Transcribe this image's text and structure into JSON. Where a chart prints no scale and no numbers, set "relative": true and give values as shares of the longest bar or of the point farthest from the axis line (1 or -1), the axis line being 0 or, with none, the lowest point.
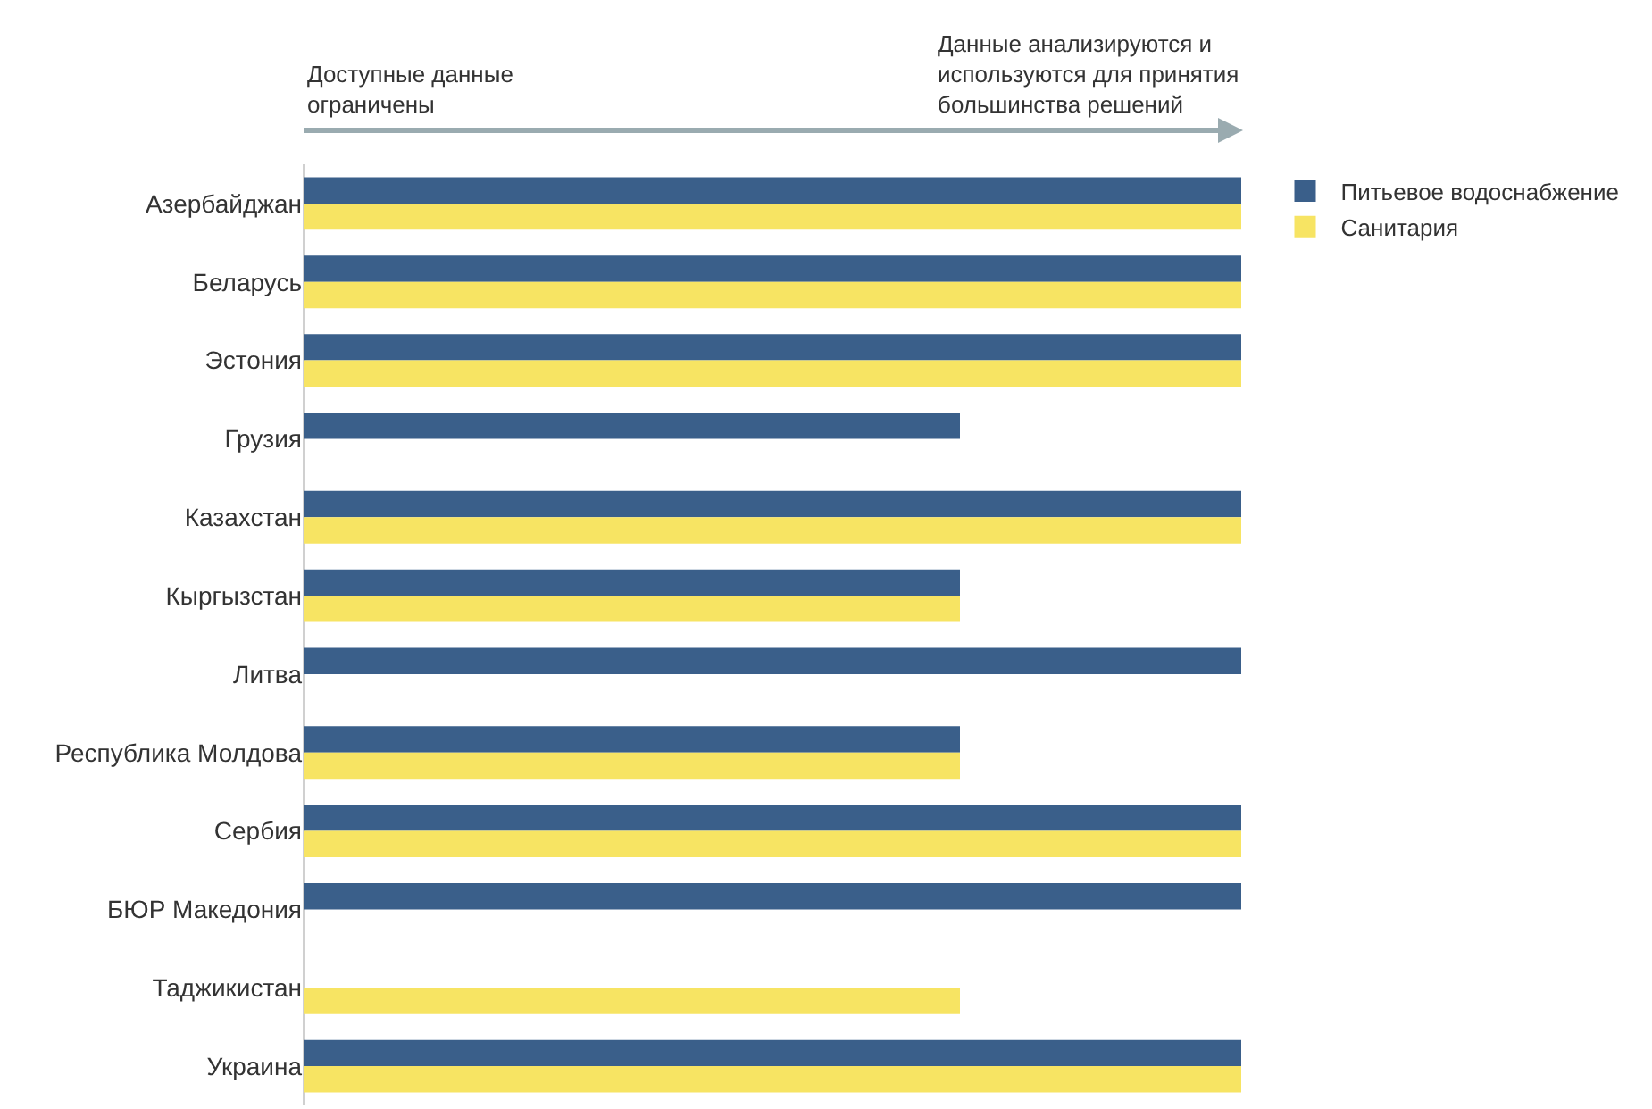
{
  "chart_data": {
    "type": "bar",
    "orientation": "horizontal",
    "relative": true,
    "legend": "top right",
    "categories": [
      "Азербайджан",
      "Беларусь",
      "Эстония",
      "Грузия",
      "Казахстан",
      "Кыргызстан",
      "Литва",
      "Республика Молдова",
      "Сербия",
      "БЮР Македония",
      "Таджикистан",
      "Украина"
    ],
    "series": [
      {
        "name": "Питьевое водоснабжение",
        "color": "#3a5f8a",
        "values": [
          1,
          1,
          1,
          0.7,
          1,
          0.7,
          1,
          0.7,
          1,
          1,
          null,
          1
        ]
      },
      {
        "name": "Санитария",
        "color": "#f7e463",
        "values": [
          1,
          1,
          1,
          null,
          1,
          0.7,
          null,
          0.7,
          1,
          null,
          0.7,
          1
        ]
      }
    ],
    "annotations": [
      "Доступные данные\nограничены",
      "Данные анализируются и\nиспользуются для принятия\nбольшинства решений"
    ]
  }
}
